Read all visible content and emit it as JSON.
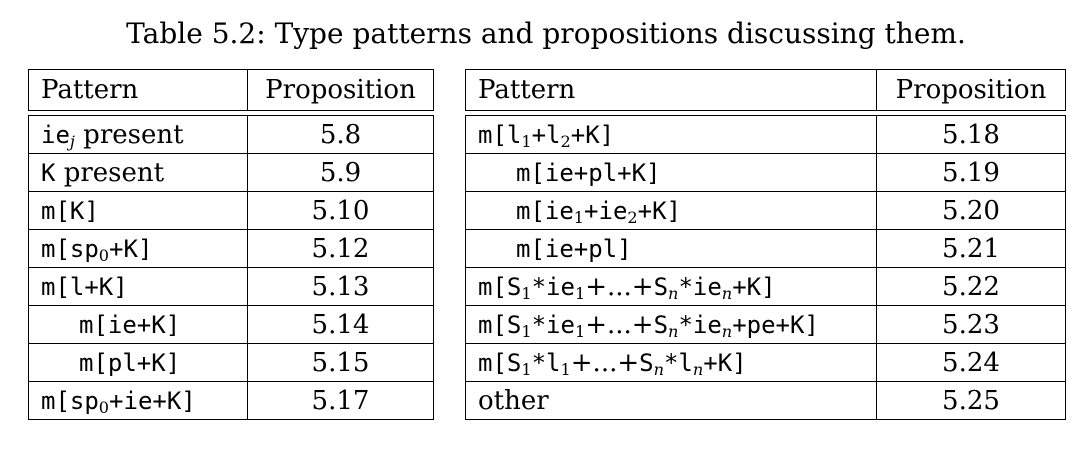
{
  "caption": "Table 5.2: Type patterns and propositions discussing them.",
  "left_table": {
    "headers": {
      "pattern": "Pattern",
      "proposition": "Proposition"
    },
    "rows": [
      {
        "pattern": "ie_j present",
        "proposition": "5.8"
      },
      {
        "pattern": "K present",
        "proposition": "5.9"
      },
      {
        "pattern": "m[K]",
        "proposition": "5.10"
      },
      {
        "pattern": "m[sp_0+K]",
        "proposition": "5.12"
      },
      {
        "pattern": "m[l+K]",
        "proposition": "5.13"
      },
      {
        "pattern": "m[ie+K]",
        "proposition": "5.14"
      },
      {
        "pattern": "m[pl+K]",
        "proposition": "5.15"
      },
      {
        "pattern": "m[sp_0+ie+K]",
        "proposition": "5.17"
      }
    ]
  },
  "right_table": {
    "headers": {
      "pattern": "Pattern",
      "proposition": "Proposition"
    },
    "rows": [
      {
        "pattern": "m[l_1+l_2+K]",
        "proposition": "5.18"
      },
      {
        "pattern": "m[ie+pl+K]",
        "proposition": "5.19"
      },
      {
        "pattern": "m[ie_1+ie_2+K]",
        "proposition": "5.20"
      },
      {
        "pattern": "m[ie+pl]",
        "proposition": "5.21"
      },
      {
        "pattern": "m[S_1*ie_1+...+S_n*ie_n+K]",
        "proposition": "5.22"
      },
      {
        "pattern": "m[S_1*ie_1+...+S_n*ie_n+pe+K]",
        "proposition": "5.23"
      },
      {
        "pattern": "m[S_1*l_1+...+S_n*l_n+K]",
        "proposition": "5.24"
      },
      {
        "pattern": "other",
        "proposition": "5.25"
      }
    ]
  }
}
